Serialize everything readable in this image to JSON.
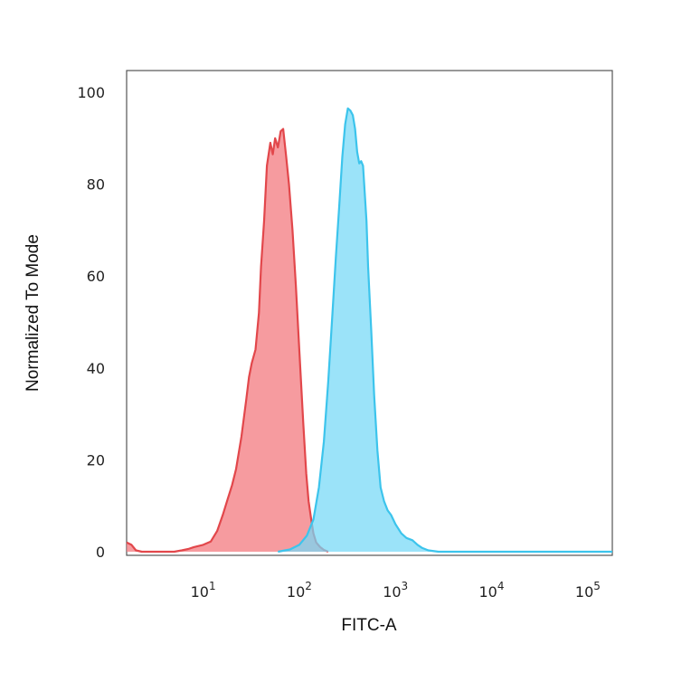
{
  "chart_data": {
    "type": "area",
    "xlabel": "FITC-A",
    "ylabel": "Normalized To Mode",
    "xscale": "log",
    "xlim": [
      1.6,
      180000
    ],
    "ylim": [
      0,
      100
    ],
    "xticks": [
      {
        "base": "10",
        "exp": "1",
        "value": 10
      },
      {
        "base": "10",
        "exp": "2",
        "value": 100
      },
      {
        "base": "10",
        "exp": "3",
        "value": 1000
      },
      {
        "base": "10",
        "exp": "4",
        "value": 10000
      },
      {
        "base": "10",
        "exp": "5",
        "value": 100000
      }
    ],
    "yticks": [
      {
        "label": "0",
        "value": 0
      },
      {
        "label": "20",
        "value": 20
      },
      {
        "label": "40",
        "value": 40
      },
      {
        "label": "60",
        "value": 60
      },
      {
        "label": "80",
        "value": 80
      },
      {
        "label": "100",
        "value": 100
      }
    ],
    "grid": false,
    "series": [
      {
        "line_color": "#e2474b",
        "fill_color": "#f47f84",
        "points": [
          [
            1.6,
            2.0
          ],
          [
            1.8,
            1.5
          ],
          [
            2.0,
            0.3
          ],
          [
            2.3,
            0
          ],
          [
            5,
            0
          ],
          [
            6,
            0.3
          ],
          [
            7,
            0.6
          ],
          [
            8,
            1.0
          ],
          [
            10,
            1.5
          ],
          [
            12,
            2.2
          ],
          [
            14,
            4.5
          ],
          [
            16,
            8
          ],
          [
            18,
            11.5
          ],
          [
            20,
            14.5
          ],
          [
            22,
            18
          ],
          [
            25,
            25
          ],
          [
            28,
            33
          ],
          [
            30,
            38
          ],
          [
            32,
            41
          ],
          [
            35,
            44
          ],
          [
            38,
            52
          ],
          [
            40,
            62
          ],
          [
            43,
            72
          ],
          [
            46,
            84
          ],
          [
            50,
            89
          ],
          [
            53,
            86.5
          ],
          [
            56,
            90
          ],
          [
            60,
            88
          ],
          [
            64,
            91.5
          ],
          [
            68,
            92
          ],
          [
            73,
            86
          ],
          [
            78,
            80
          ],
          [
            85,
            70
          ],
          [
            92,
            58
          ],
          [
            100,
            44
          ],
          [
            110,
            28
          ],
          [
            118,
            17
          ],
          [
            125,
            11
          ],
          [
            133,
            7
          ],
          [
            140,
            4
          ],
          [
            150,
            2
          ],
          [
            165,
            1
          ],
          [
            180,
            0.4
          ],
          [
            200,
            0
          ]
        ]
      },
      {
        "line_color": "#3cc4ec",
        "fill_color": "#74d8f6",
        "points": [
          [
            60,
            0
          ],
          [
            80,
            0.5
          ],
          [
            100,
            1.5
          ],
          [
            120,
            3.5
          ],
          [
            140,
            7
          ],
          [
            160,
            14
          ],
          [
            180,
            24
          ],
          [
            200,
            37
          ],
          [
            220,
            51
          ],
          [
            240,
            64
          ],
          [
            260,
            75
          ],
          [
            280,
            86
          ],
          [
            300,
            93
          ],
          [
            320,
            96.5
          ],
          [
            340,
            96
          ],
          [
            360,
            95
          ],
          [
            380,
            92
          ],
          [
            400,
            87
          ],
          [
            420,
            84.5
          ],
          [
            440,
            85
          ],
          [
            460,
            84
          ],
          [
            480,
            78
          ],
          [
            500,
            72
          ],
          [
            520,
            62
          ],
          [
            560,
            48
          ],
          [
            600,
            34
          ],
          [
            650,
            22
          ],
          [
            700,
            14
          ],
          [
            760,
            11
          ],
          [
            830,
            9
          ],
          [
            900,
            8
          ],
          [
            1000,
            6
          ],
          [
            1150,
            4
          ],
          [
            1300,
            3
          ],
          [
            1500,
            2.5
          ],
          [
            1700,
            1.5
          ],
          [
            1900,
            0.8
          ],
          [
            2200,
            0.3
          ],
          [
            2800,
            0
          ],
          [
            180000,
            0
          ]
        ]
      }
    ]
  }
}
